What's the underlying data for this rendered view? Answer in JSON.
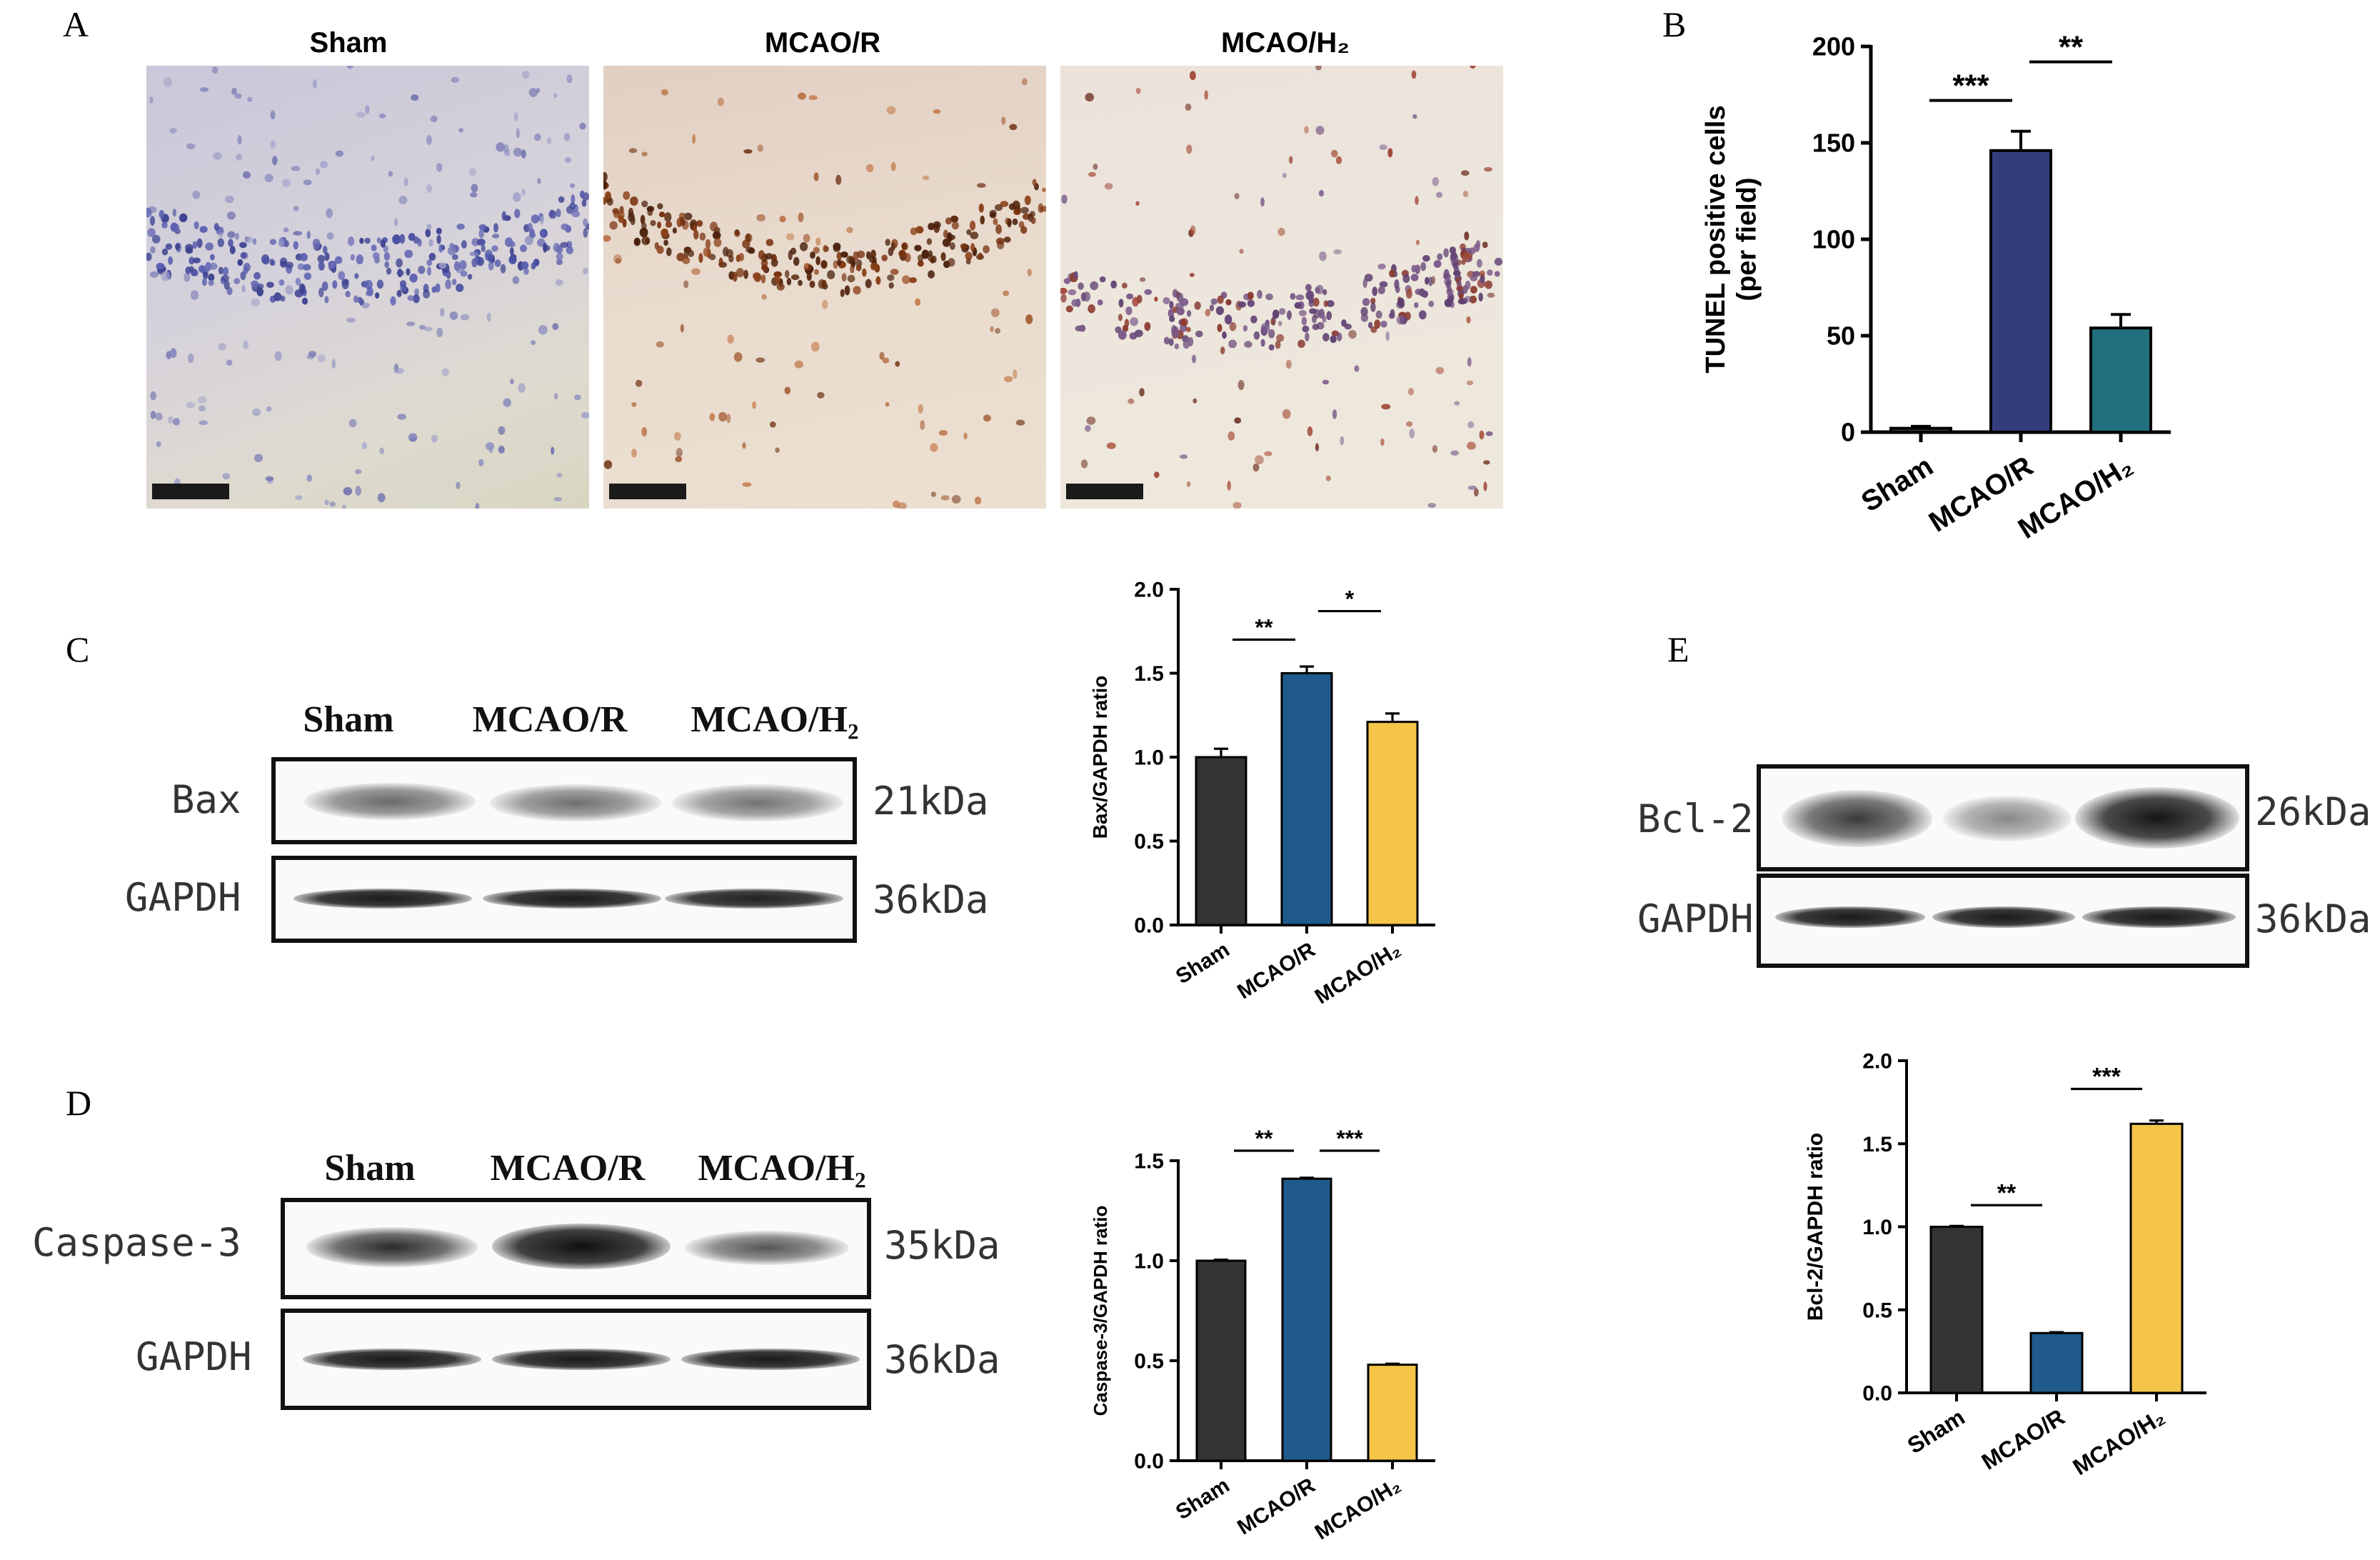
{
  "panels": {
    "A": {
      "label": "A",
      "images": [
        {
          "title": "Sham",
          "stain": "blue"
        },
        {
          "title": "MCAO/R",
          "stain": "brown"
        },
        {
          "title": "MCAO/H₂",
          "stain": "mixed"
        }
      ]
    },
    "B": {
      "label": "B"
    },
    "C": {
      "label": "C",
      "blot_headers": [
        "Sham",
        "MCAO/R",
        "MCAO/H₂"
      ],
      "rows": [
        {
          "protein": "Bax",
          "kda": "21kDa"
        },
        {
          "protein": "GAPDH",
          "kda": "36kDa"
        }
      ]
    },
    "D": {
      "label": "D",
      "blot_headers": [
        "Sham",
        "MCAO/R",
        "MCAO/H₂"
      ],
      "rows": [
        {
          "protein": "Caspase-3",
          "kda": "35kDa"
        },
        {
          "protein": "GAPDH",
          "kda": "36kDa"
        }
      ]
    },
    "E": {
      "label": "E",
      "rows": [
        {
          "protein": "Bcl-2",
          "kda": "26kDa"
        },
        {
          "protein": "GAPDH",
          "kda": "36kDa"
        }
      ]
    }
  },
  "chart_data": [
    {
      "id": "B",
      "type": "bar",
      "categories": [
        "Sham",
        "MCAO/R",
        "MCAO/H₂"
      ],
      "values": [
        2,
        146,
        54
      ],
      "errors": [
        1,
        10,
        7
      ],
      "ylabel": "TUNEL positive cells",
      "ylabel2": "(per field)",
      "ylim": [
        0,
        200
      ],
      "ticks": [
        0,
        50,
        100,
        150,
        200
      ],
      "tick_labels": [
        "0",
        "50",
        "100",
        "150",
        "200"
      ],
      "colors": [
        "#3a3a3a",
        "#343d7c",
        "#22707e"
      ],
      "significance": [
        {
          "from": 0,
          "to": 1,
          "label": "***",
          "y": 172
        },
        {
          "from": 1,
          "to": 2,
          "label": "**",
          "y": 192
        }
      ]
    },
    {
      "id": "C",
      "type": "bar",
      "categories": [
        "Sham",
        "MCAO/R",
        "MCAO/H₂"
      ],
      "values": [
        1.0,
        1.5,
        1.21
      ],
      "errors": [
        0.05,
        0.04,
        0.05
      ],
      "ylabel": "Bax/GAPDH ratio",
      "ylim": [
        0,
        2.0
      ],
      "ticks": [
        0.0,
        0.5,
        1.0,
        1.5,
        2.0
      ],
      "tick_labels": [
        "0.0",
        "0.5",
        "1.0",
        "1.5",
        "2.0"
      ],
      "colors": [
        "#333333",
        "#1f5a8a",
        "#f5c54a"
      ],
      "significance": [
        {
          "from": 0,
          "to": 1,
          "label": "**",
          "y": 1.7
        },
        {
          "from": 1,
          "to": 2,
          "label": "*",
          "y": 1.87
        }
      ]
    },
    {
      "id": "D",
      "type": "bar",
      "categories": [
        "Sham",
        "MCAO/R",
        "MCAO/H₂"
      ],
      "values": [
        1.0,
        1.41,
        0.48
      ],
      "errors": [
        0.005,
        0.005,
        0.005
      ],
      "ylabel": "Caspase-3/GAPDH ratio",
      "ylim": [
        0,
        1.5
      ],
      "ticks": [
        0.0,
        0.5,
        1.0,
        1.5
      ],
      "tick_labels": [
        "0.0",
        "0.5",
        "1.0",
        "1.5"
      ],
      "colors": [
        "#333333",
        "#1f5a8a",
        "#f5c54a"
      ],
      "significance": [
        {
          "from": 0,
          "to": 1,
          "label": "**",
          "y": 1.55
        },
        {
          "from": 1,
          "to": 2,
          "label": "***",
          "y": 1.55
        }
      ]
    },
    {
      "id": "E",
      "type": "bar",
      "categories": [
        "Sham",
        "MCAO/R",
        "MCAO/H₂"
      ],
      "values": [
        1.0,
        0.36,
        1.62
      ],
      "errors": [
        0.005,
        0.005,
        0.02
      ],
      "ylabel": "Bcl-2/GAPDH ratio",
      "ylim": [
        0,
        2.0
      ],
      "ticks": [
        0.0,
        0.5,
        1.0,
        1.5,
        2.0
      ],
      "tick_labels": [
        "0.0",
        "0.5",
        "1.0",
        "1.5",
        "2.0"
      ],
      "colors": [
        "#333333",
        "#1f5a8a",
        "#f5c54a"
      ],
      "significance": [
        {
          "from": 0,
          "to": 1,
          "label": "**",
          "y": 1.13
        },
        {
          "from": 1,
          "to": 2,
          "label": "***",
          "y": 1.83
        }
      ]
    }
  ]
}
